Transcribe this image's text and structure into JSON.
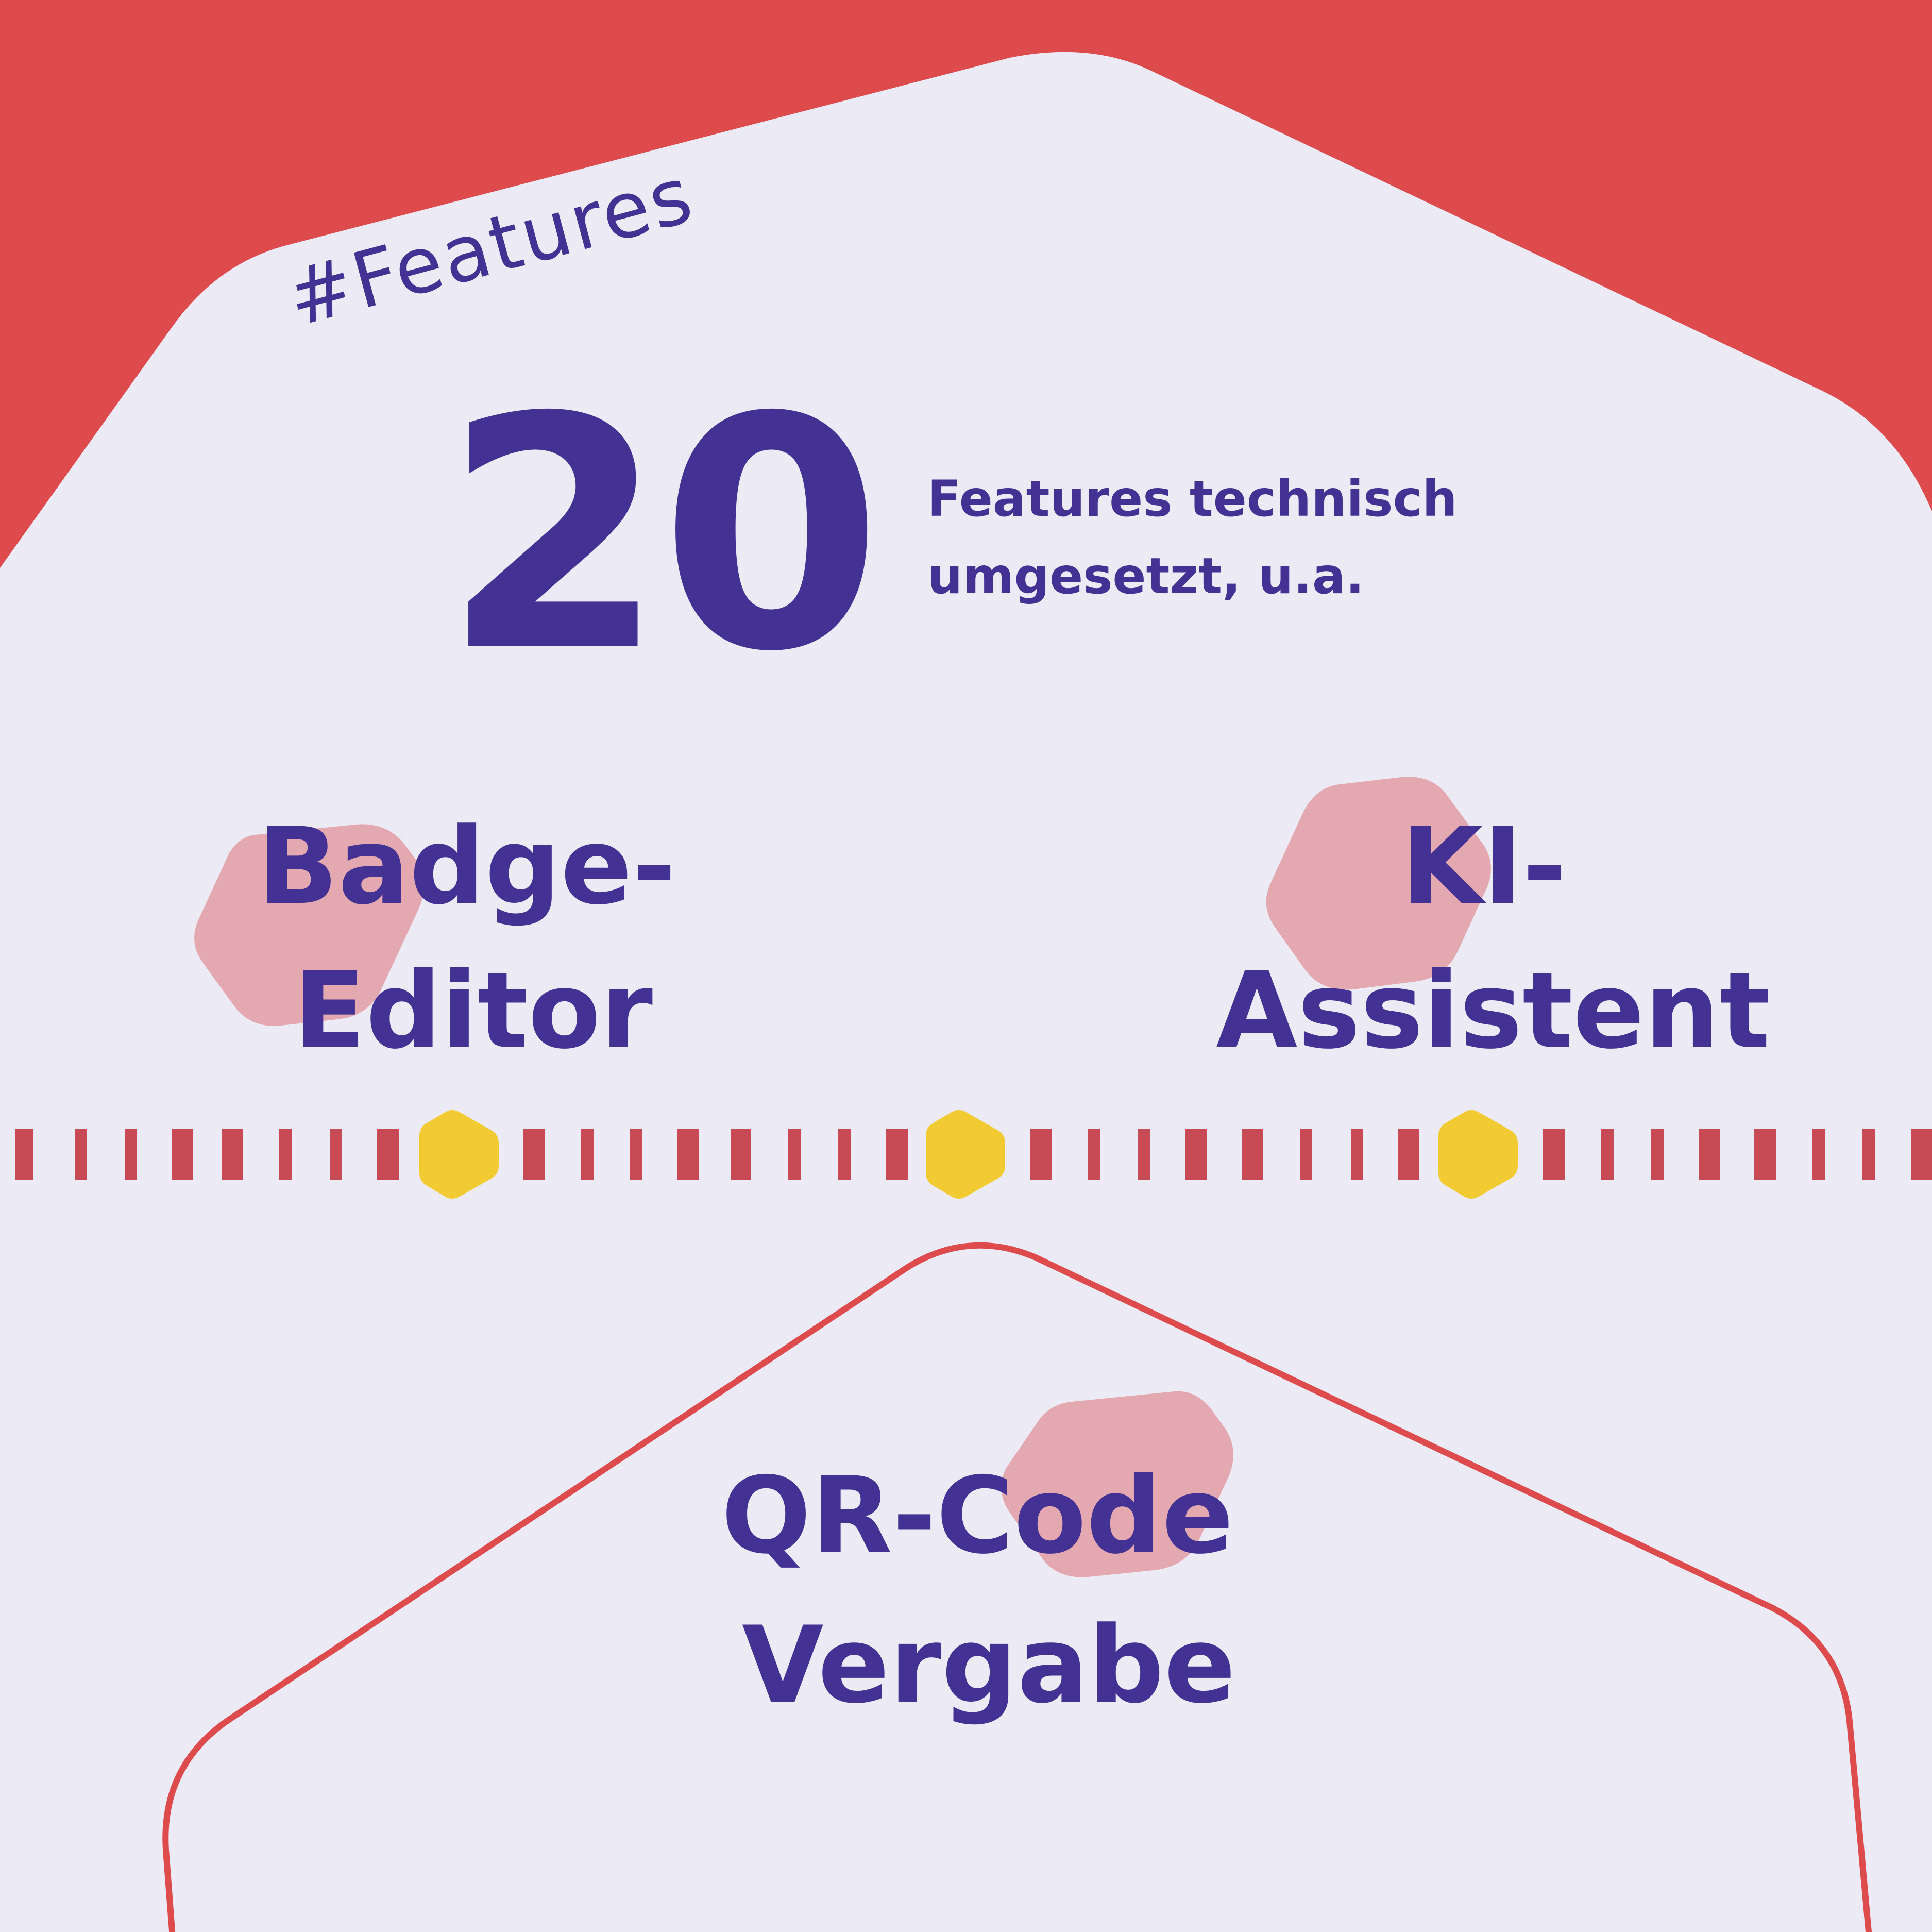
{
  "tag": "#Features",
  "headline": {
    "number": "20",
    "line1": "Features technisch",
    "line2": "umgesetzt, u.a."
  },
  "features": [
    {
      "line1": "Badge-",
      "line2": "Editor"
    },
    {
      "line1": "KI-",
      "line2": "Assistent"
    },
    {
      "line1": "QR-Code",
      "line2": "Vergabe"
    }
  ],
  "colors": {
    "background": "#ECEAF5",
    "accent_red": "#DE4B4C",
    "text_purple": "#433293",
    "hexagon_pink": "#E4A9B0",
    "hexagon_yellow": "#F2CB33",
    "dash_red": "#C84A55"
  }
}
